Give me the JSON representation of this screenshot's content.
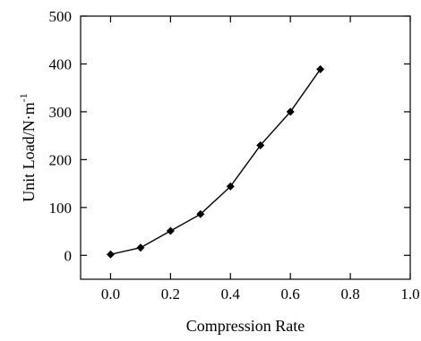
{
  "chart_data": {
    "type": "line",
    "title": "",
    "xlabel": "Compression Rate",
    "ylabel": "Unit Load/N·m",
    "ylabel_superscript": "-1",
    "xlim": [
      -0.1,
      1.0
    ],
    "ylim": [
      -50,
      500
    ],
    "xticks": [
      "0.0",
      "0.2",
      "0.4",
      "0.6",
      "0.8",
      "1.0"
    ],
    "yticks": [
      "0",
      "100",
      "200",
      "300",
      "400",
      "500"
    ],
    "grid": false,
    "legend": "none",
    "marker": "diamond",
    "line_color": "#000000",
    "series": [
      {
        "x": [
          0.0,
          0.1,
          0.2,
          0.3,
          0.4,
          0.5,
          0.6,
          0.7
        ],
        "y": [
          2,
          16,
          51,
          86,
          144,
          230,
          300,
          389
        ]
      }
    ]
  }
}
